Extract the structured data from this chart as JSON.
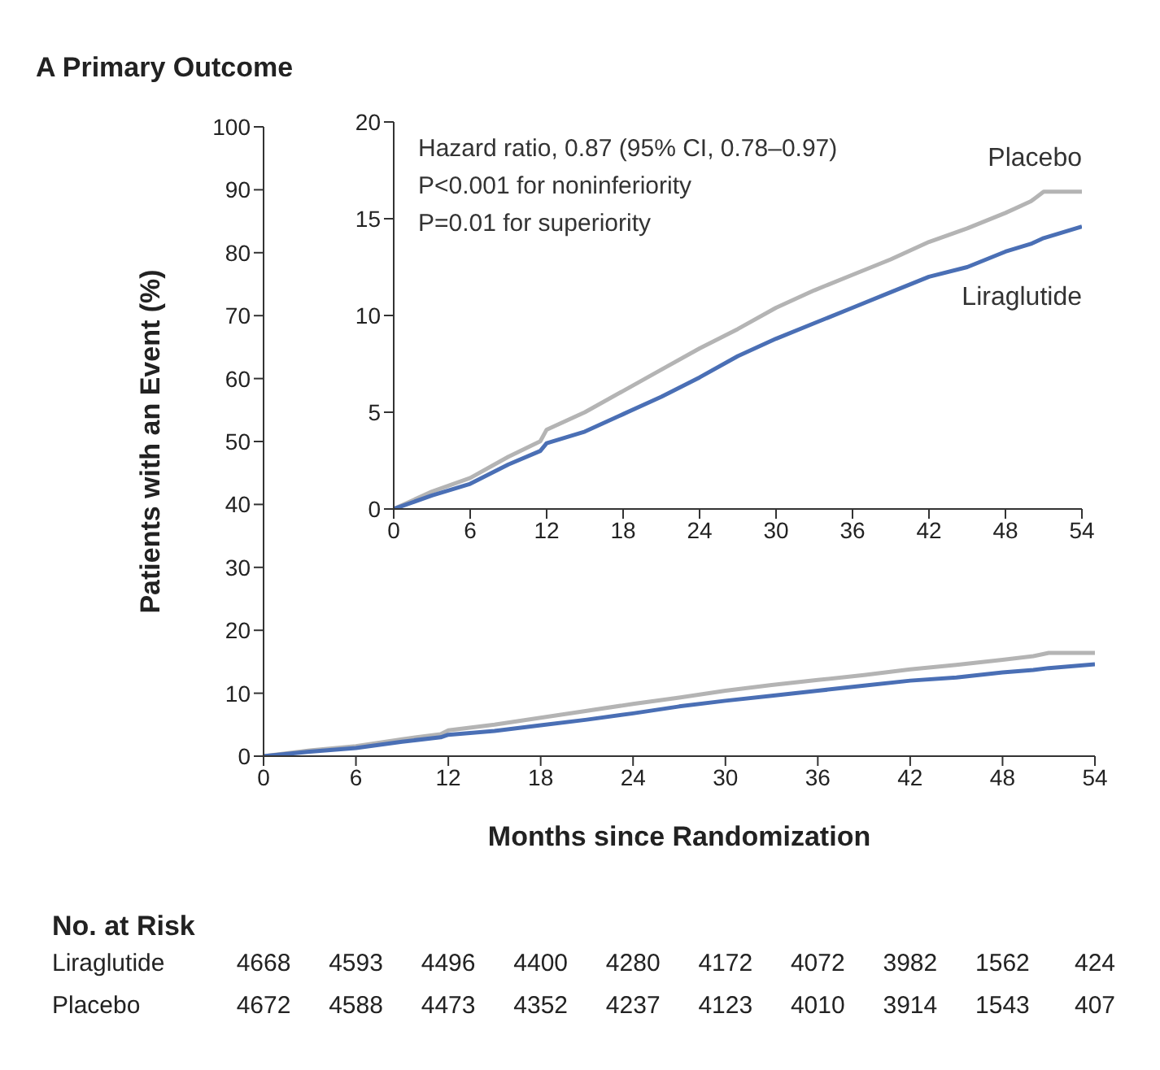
{
  "chart_data": [
    {
      "type": "line",
      "title": "A  Primary Outcome",
      "xlabel": "Months since Randomization",
      "ylabel": "Patients with an Event (%)",
      "xlim": [
        0,
        54
      ],
      "xticks": [
        0,
        6,
        12,
        18,
        24,
        30,
        36,
        42,
        48,
        54
      ],
      "ylim": [
        0,
        100
      ],
      "yticks": [
        0,
        10,
        20,
        30,
        40,
        50,
        60,
        70,
        80,
        90,
        100
      ],
      "grid": false,
      "legend": false,
      "marker": "none",
      "annotations": [
        "No. at Risk",
        "Liraglutide 4668 4593 4496 4400 4280 4172 4072 3982 1562 424",
        "Placebo 4672 4588 4473 4352 4237 4123 4010 3914 1543 407"
      ],
      "x": [
        0,
        3,
        6,
        9,
        11.5,
        12,
        15,
        18,
        21,
        24,
        27,
        30,
        33,
        36,
        39,
        42,
        45,
        48,
        50,
        51,
        54
      ],
      "series": [
        {
          "color": "#b4b4b4",
          "values": [
            0,
            0.9,
            1.6,
            2.7,
            3.5,
            4.1,
            5.0,
            6.1,
            7.2,
            8.3,
            9.3,
            10.4,
            11.3,
            12.1,
            12.9,
            13.8,
            14.5,
            15.3,
            15.9,
            16.4,
            16.4
          ]
        },
        {
          "color": "#4a6fb5",
          "values": [
            0,
            0.7,
            1.3,
            2.3,
            3.0,
            3.4,
            4.0,
            4.9,
            5.8,
            6.8,
            7.9,
            8.8,
            9.6,
            10.4,
            11.2,
            12.0,
            12.5,
            13.3,
            13.7,
            14.0,
            14.6
          ]
        }
      ]
    },
    {
      "type": "line",
      "xlim": [
        0,
        54
      ],
      "xticks": [
        0,
        6,
        12,
        18,
        24,
        30,
        36,
        42,
        48,
        54
      ],
      "ylim": [
        0,
        20
      ],
      "yticks": [
        0,
        5,
        10,
        15,
        20
      ],
      "grid": false,
      "legend": false,
      "marker": "none",
      "annotations": [
        "Hazard ratio, 0.87 (95% CI, 0.78–0.97)",
        "P<0.001 for noninferiority",
        "P=0.01 for superiority"
      ],
      "x": [
        0,
        3,
        6,
        9,
        11.5,
        12,
        15,
        18,
        21,
        24,
        27,
        30,
        33,
        36,
        39,
        42,
        45,
        48,
        50,
        51,
        54
      ],
      "series": [
        {
          "name": "Placebo",
          "color": "#b4b4b4",
          "values": [
            0,
            0.9,
            1.6,
            2.7,
            3.5,
            4.1,
            5.0,
            6.1,
            7.2,
            8.3,
            9.3,
            10.4,
            11.3,
            12.1,
            12.9,
            13.8,
            14.5,
            15.3,
            15.9,
            16.4,
            16.4
          ]
        },
        {
          "name": "Liraglutide",
          "color": "#4a6fb5",
          "values": [
            0,
            0.7,
            1.3,
            2.3,
            3.0,
            3.4,
            4.0,
            4.9,
            5.8,
            6.8,
            7.9,
            8.8,
            9.6,
            10.4,
            11.2,
            12.0,
            12.5,
            13.3,
            13.7,
            14.0,
            14.6
          ]
        }
      ]
    }
  ]
}
